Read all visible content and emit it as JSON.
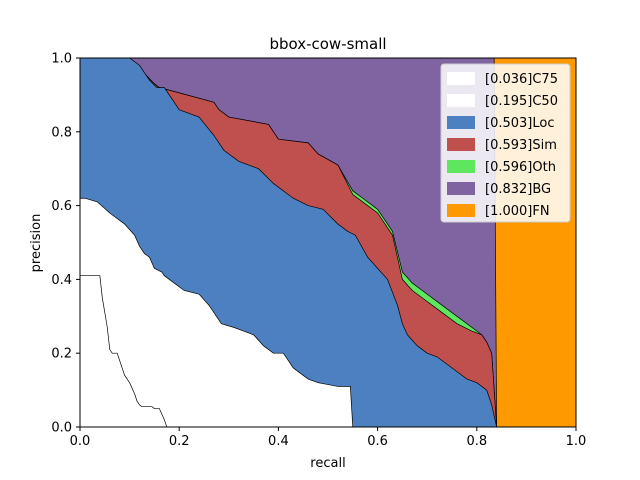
{
  "chart_data": {
    "type": "area",
    "title": "bbox-cow-small",
    "xlabel": "recall",
    "ylabel": "precision",
    "xlim": [
      0,
      1
    ],
    "ylim": [
      0,
      1
    ],
    "x_ticks": [
      "0.0",
      "0.2",
      "0.4",
      "0.6",
      "0.8",
      "1.0"
    ],
    "y_ticks": [
      "0.0",
      "0.2",
      "0.4",
      "0.6",
      "0.8",
      "1.0"
    ],
    "grid": false,
    "legend_position": "top-right",
    "legend": [
      {
        "label": "[0.036]C75",
        "color": "#ffffff"
      },
      {
        "label": "[0.195]C50",
        "color": "#ffffff"
      },
      {
        "label": "[0.503]Loc",
        "color": "#4c80c0"
      },
      {
        "label": "[0.593]Sim",
        "color": "#c0504d"
      },
      {
        "label": "[0.596]Oth",
        "color": "#5fe65f"
      },
      {
        "label": "[0.832]BG",
        "color": "#8064a2"
      },
      {
        "label": "[1.000]FN",
        "color": "#ff9900"
      }
    ],
    "series": [
      {
        "name": "[0.036]C75",
        "color": "#ffffff",
        "x": [
          0.0,
          0.04,
          0.045,
          0.055,
          0.06,
          0.065,
          0.075,
          0.085,
          0.09,
          0.095,
          0.1,
          0.11,
          0.115,
          0.12,
          0.125,
          0.13,
          0.145,
          0.15,
          0.16,
          0.17,
          0.175,
          0.18
        ],
        "y": [
          0.41,
          0.41,
          0.35,
          0.27,
          0.21,
          0.2,
          0.2,
          0.16,
          0.14,
          0.13,
          0.12,
          0.09,
          0.07,
          0.06,
          0.055,
          0.055,
          0.055,
          0.05,
          0.05,
          0.02,
          0.0,
          0.0
        ]
      },
      {
        "name": "[0.195]C50",
        "color": "#ffffff",
        "x": [
          0.0,
          0.01,
          0.035,
          0.06,
          0.09,
          0.11,
          0.12,
          0.13,
          0.14,
          0.15,
          0.165,
          0.17,
          0.19,
          0.21,
          0.24,
          0.26,
          0.27,
          0.285,
          0.31,
          0.33,
          0.35,
          0.37,
          0.39,
          0.41,
          0.42,
          0.43,
          0.46,
          0.48,
          0.5,
          0.52,
          0.545,
          0.55
        ],
        "y": [
          0.62,
          0.62,
          0.61,
          0.58,
          0.55,
          0.52,
          0.49,
          0.47,
          0.46,
          0.43,
          0.42,
          0.41,
          0.39,
          0.37,
          0.36,
          0.33,
          0.31,
          0.28,
          0.27,
          0.26,
          0.25,
          0.22,
          0.2,
          0.2,
          0.18,
          0.16,
          0.13,
          0.12,
          0.115,
          0.11,
          0.11,
          0.0
        ]
      },
      {
        "name": "[0.503]Loc",
        "color": "#4c80c0",
        "x": [
          0.0,
          0.01,
          0.1,
          0.12,
          0.14,
          0.155,
          0.17,
          0.2,
          0.24,
          0.27,
          0.29,
          0.32,
          0.36,
          0.39,
          0.43,
          0.46,
          0.49,
          0.52,
          0.54,
          0.555,
          0.58,
          0.6,
          0.62,
          0.64,
          0.65,
          0.66,
          0.68,
          0.7,
          0.72,
          0.74,
          0.76,
          0.78,
          0.8,
          0.82,
          0.83,
          0.84
        ],
        "y": [
          1.0,
          1.0,
          1.0,
          0.98,
          0.94,
          0.92,
          0.92,
          0.86,
          0.84,
          0.79,
          0.75,
          0.72,
          0.7,
          0.66,
          0.62,
          0.6,
          0.59,
          0.55,
          0.53,
          0.52,
          0.46,
          0.43,
          0.4,
          0.33,
          0.28,
          0.25,
          0.22,
          0.2,
          0.19,
          0.17,
          0.15,
          0.13,
          0.12,
          0.1,
          0.06,
          0.0
        ]
      },
      {
        "name": "[0.593]Sim",
        "color": "#c0504d",
        "x": [
          0.0,
          0.1,
          0.15,
          0.16,
          0.27,
          0.28,
          0.3,
          0.38,
          0.4,
          0.46,
          0.48,
          0.52,
          0.55,
          0.57,
          0.6,
          0.63,
          0.65,
          0.67,
          0.69,
          0.72,
          0.76,
          0.79,
          0.81,
          0.82,
          0.83,
          0.84
        ],
        "y": [
          1.0,
          1.0,
          0.93,
          0.92,
          0.88,
          0.86,
          0.84,
          0.82,
          0.78,
          0.77,
          0.74,
          0.71,
          0.63,
          0.61,
          0.58,
          0.52,
          0.4,
          0.37,
          0.35,
          0.32,
          0.28,
          0.26,
          0.25,
          0.23,
          0.2,
          0.0
        ]
      },
      {
        "name": "[0.596]Oth",
        "color": "#5fe65f",
        "x": [
          0.0,
          0.1,
          0.15,
          0.16,
          0.27,
          0.28,
          0.3,
          0.38,
          0.4,
          0.46,
          0.48,
          0.52,
          0.55,
          0.57,
          0.6,
          0.63,
          0.65,
          0.67,
          0.69,
          0.72,
          0.76,
          0.79,
          0.81,
          0.82,
          0.83,
          0.84
        ],
        "y": [
          1.0,
          1.0,
          0.93,
          0.92,
          0.88,
          0.86,
          0.84,
          0.82,
          0.78,
          0.77,
          0.74,
          0.71,
          0.64,
          0.62,
          0.59,
          0.53,
          0.42,
          0.39,
          0.37,
          0.34,
          0.3,
          0.27,
          0.25,
          0.23,
          0.2,
          0.0
        ]
      },
      {
        "name": "[0.832]BG",
        "color": "#8064a2",
        "x": [
          0.0,
          0.835,
          0.84
        ],
        "y": [
          1.0,
          1.0,
          0.0
        ]
      },
      {
        "name": "[1.000]FN",
        "color": "#ff9900",
        "x": [
          0.0,
          1.0
        ],
        "y": [
          1.0,
          1.0
        ]
      }
    ]
  }
}
